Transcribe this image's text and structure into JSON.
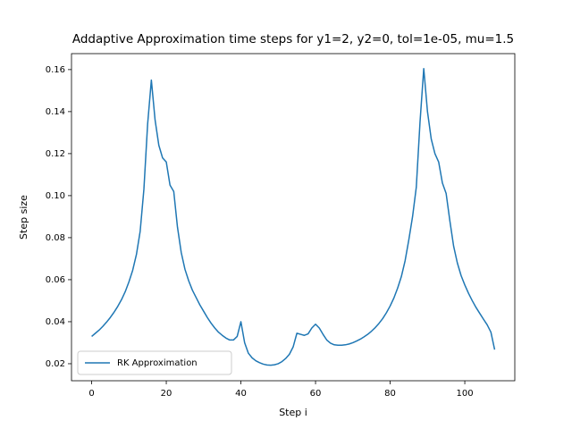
{
  "chart_data": {
    "type": "line",
    "title": "Addaptive Approximation time steps for y1=2, y2=0, tol=1e-05, mu=1.5",
    "x_label": "Step i",
    "y_label": "Step size",
    "x": [
      0,
      1,
      2,
      3,
      4,
      5,
      6,
      7,
      8,
      9,
      10,
      11,
      12,
      13,
      14,
      15,
      16,
      17,
      18,
      19,
      20,
      21,
      22,
      23,
      24,
      25,
      26,
      27,
      28,
      29,
      30,
      31,
      32,
      33,
      34,
      35,
      36,
      37,
      38,
      39,
      40,
      41,
      42,
      43,
      44,
      45,
      46,
      47,
      48,
      49,
      50,
      51,
      52,
      53,
      54,
      55,
      56,
      57,
      58,
      59,
      60,
      61,
      62,
      63,
      64,
      65,
      66,
      67,
      68,
      69,
      70,
      71,
      72,
      73,
      74,
      75,
      76,
      77,
      78,
      79,
      80,
      81,
      82,
      83,
      84,
      85,
      86,
      87,
      88,
      89,
      90,
      91,
      92,
      93,
      94,
      95,
      96,
      97,
      98,
      99,
      100,
      101,
      102,
      103,
      104,
      105,
      106,
      107,
      108
    ],
    "series": [
      {
        "name": "RK Approximation",
        "color": "#1f77b4",
        "values": [
          0.033,
          0.0345,
          0.036,
          0.0378,
          0.0398,
          0.042,
          0.0445,
          0.0473,
          0.0505,
          0.0543,
          0.059,
          0.0645,
          0.072,
          0.083,
          0.103,
          0.134,
          0.155,
          0.136,
          0.124,
          0.118,
          0.116,
          0.105,
          0.102,
          0.085,
          0.073,
          0.065,
          0.0595,
          0.055,
          0.0515,
          0.048,
          0.045,
          0.042,
          0.0393,
          0.037,
          0.035,
          0.0335,
          0.0322,
          0.0313,
          0.0313,
          0.033,
          0.04,
          0.03,
          0.025,
          0.0228,
          0.0214,
          0.0205,
          0.0198,
          0.0194,
          0.0193,
          0.0195,
          0.02,
          0.021,
          0.0225,
          0.0245,
          0.028,
          0.0345,
          0.034,
          0.0335,
          0.0342,
          0.037,
          0.0388,
          0.037,
          0.034,
          0.0313,
          0.0298,
          0.029,
          0.0288,
          0.0288,
          0.029,
          0.0294,
          0.03,
          0.0308,
          0.0317,
          0.0328,
          0.034,
          0.0355,
          0.0372,
          0.0392,
          0.0415,
          0.0443,
          0.0475,
          0.0513,
          0.056,
          0.0615,
          0.069,
          0.079,
          0.09,
          0.104,
          0.135,
          0.1605,
          0.14,
          0.127,
          0.12,
          0.116,
          0.106,
          0.101,
          0.088,
          0.076,
          0.068,
          0.062,
          0.0575,
          0.0535,
          0.05,
          0.0468,
          0.044,
          0.0412,
          0.0385,
          0.035,
          0.0267
        ]
      }
    ],
    "xlim": [
      -5.4,
      113.4
    ],
    "ylim": [
      0.0119,
      0.1676
    ],
    "xticks": [
      0,
      20,
      40,
      60,
      80,
      100
    ],
    "yticks": [
      0.02,
      0.04,
      0.06,
      0.08,
      {
        "value": 0.1,
        "label": "0.10"
      },
      0.12,
      0.14,
      0.16
    ],
    "legend": "lower left"
  }
}
